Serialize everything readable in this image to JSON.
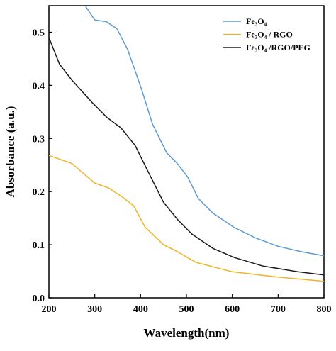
{
  "chart_data": {
    "type": "line",
    "x_label": "Wavelength(nm)",
    "y_label": "Absorbance (a.u.)",
    "xlim": [
      200,
      800
    ],
    "ylim": [
      0,
      0.55
    ],
    "xticks": [
      200,
      300,
      400,
      500,
      600,
      700,
      800
    ],
    "yticks": [
      {
        "value": 0,
        "label": "0.0"
      },
      0.1,
      0.2,
      0.3,
      0.4,
      0.5
    ],
    "legend": "upper right",
    "series": [
      {
        "name": "Fe₃O₄",
        "color": "#5b9bd5",
        "x": [
          279,
          300,
          325,
          348,
          372,
          402,
          426,
          457,
          480,
          503,
          526,
          557,
          603,
          650,
          700,
          750,
          800
        ],
        "values": [
          0.55,
          0.523,
          0.52,
          0.507,
          0.467,
          0.393,
          0.327,
          0.273,
          0.253,
          0.227,
          0.187,
          0.16,
          0.133,
          0.113,
          0.097,
          0.087,
          0.079
        ]
      },
      {
        "name": "Fe₃O₄ / RGO",
        "color": "#f0b323",
        "x": [
          200,
          250,
          300,
          330,
          360,
          385,
          410,
          450,
          480,
          520,
          600,
          700,
          800
        ],
        "values": [
          0.268,
          0.253,
          0.216,
          0.207,
          0.19,
          0.173,
          0.133,
          0.1,
          0.087,
          0.067,
          0.049,
          0.039,
          0.031
        ]
      },
      {
        "name": "Fe₃O₄ /RGO/PEG",
        "color": "#1a1a1a",
        "x": [
          200,
          223,
          249,
          295,
          326,
          357,
          388,
          419,
          450,
          481,
          512,
          558,
          604,
          666,
          743,
          800
        ],
        "values": [
          0.49,
          0.44,
          0.411,
          0.367,
          0.34,
          0.32,
          0.287,
          0.233,
          0.18,
          0.147,
          0.12,
          0.093,
          0.076,
          0.06,
          0.049,
          0.043
        ]
      }
    ]
  }
}
